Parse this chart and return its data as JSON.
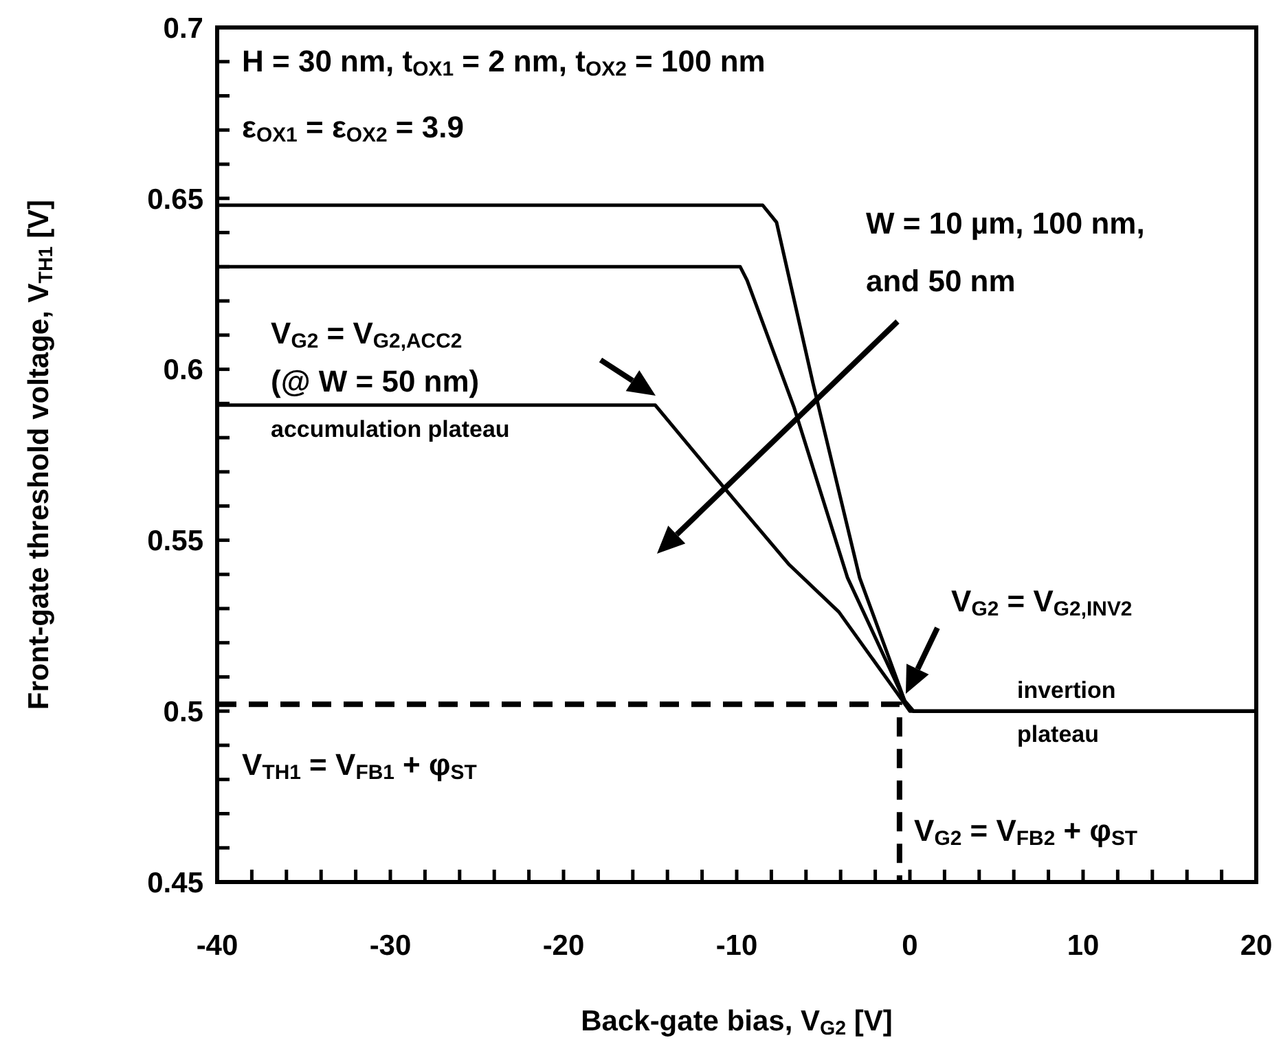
{
  "chart_data": {
    "type": "line",
    "xlabel": "Back-gate bias, V$_{G2}$ [V]",
    "ylabel": "Front-gate threshold voltage, V$_{TH1}$ [V]",
    "xlim": [
      -40,
      20
    ],
    "ylim": [
      0.45,
      0.7
    ],
    "xticks": [
      -40,
      {
        "value": -38,
        "label": null
      },
      {
        "value": -36,
        "label": null
      },
      {
        "value": -34,
        "label": null
      },
      {
        "value": -32,
        "label": null
      },
      -30,
      {
        "value": -28,
        "label": null
      },
      {
        "value": -26,
        "label": null
      },
      {
        "value": -24,
        "label": null
      },
      {
        "value": -22,
        "label": null
      },
      -20,
      {
        "value": -18,
        "label": null
      },
      {
        "value": -16,
        "label": null
      },
      {
        "value": -14,
        "label": null
      },
      {
        "value": -12,
        "label": null
      },
      -10,
      {
        "value": -8,
        "label": null
      },
      {
        "value": -6,
        "label": null
      },
      {
        "value": -4,
        "label": null
      },
      {
        "value": -2,
        "label": null
      },
      0,
      {
        "value": 2,
        "label": null
      },
      {
        "value": 4,
        "label": null
      },
      {
        "value": 6,
        "label": null
      },
      {
        "value": 8,
        "label": null
      },
      10,
      {
        "value": 12,
        "label": null
      },
      {
        "value": 14,
        "label": null
      },
      {
        "value": 16,
        "label": null
      },
      {
        "value": 18,
        "label": null
      },
      20
    ],
    "yticks": [
      0.45,
      {
        "value": 0.46,
        "label": null
      },
      {
        "value": 0.47,
        "label": null
      },
      {
        "value": 0.48,
        "label": null
      },
      {
        "value": 0.49,
        "label": null
      },
      0.5,
      {
        "value": 0.51,
        "label": null
      },
      {
        "value": 0.52,
        "label": null
      },
      {
        "value": 0.53,
        "label": null
      },
      {
        "value": 0.54,
        "label": null
      },
      0.55,
      {
        "value": 0.56,
        "label": null
      },
      {
        "value": 0.57,
        "label": null
      },
      {
        "value": 0.58,
        "label": null
      },
      {
        "value": 0.59,
        "label": null
      },
      0.6,
      {
        "value": 0.61,
        "label": null
      },
      {
        "value": 0.62,
        "label": null
      },
      {
        "value": 0.63,
        "label": null
      },
      {
        "value": 0.64,
        "label": null
      },
      0.65,
      {
        "value": 0.66,
        "label": null
      },
      {
        "value": 0.67,
        "label": null
      },
      {
        "value": 0.68,
        "label": null
      },
      {
        "value": 0.69,
        "label": null
      },
      0.7
    ],
    "grid": false,
    "series": [
      {
        "color": "#000000",
        "line_style": "solid",
        "x": [
          -40,
          -8.5,
          -7.7,
          -5.6,
          -2.9,
          -0.3,
          0.2,
          20
        ],
        "values": [
          0.648,
          0.648,
          0.643,
          0.596,
          0.539,
          0.503,
          0.5,
          0.5
        ]
      },
      {
        "color": "#000000",
        "line_style": "solid",
        "x": [
          -40,
          -9.8,
          -9.4,
          -6.7,
          -3.6,
          -0.3,
          0.2,
          20
        ],
        "values": [
          0.63,
          0.63,
          0.626,
          0.589,
          0.539,
          0.503,
          0.5,
          0.5
        ]
      },
      {
        "color": "#000000",
        "line_style": "solid",
        "x": [
          -40,
          -14.7,
          -11.5,
          -7.0,
          -4.1,
          -0.7,
          0,
          0.2,
          20
        ],
        "values": [
          0.5895,
          0.5895,
          0.57,
          0.543,
          0.529,
          0.505,
          0.5,
          0.5,
          0.5
        ]
      },
      {
        "color": "#000000",
        "line_style": "dashed",
        "x": [
          -40,
          -0.6,
          -0.6
        ],
        "values": [
          0.502,
          0.502,
          0.45
        ]
      }
    ],
    "annotations": [
      "H = 30 nm, t$_{OX1}$ = 2 nm, t$_{OX2}$ = 100 nm",
      "ε$_{OX1}$ = ε$_{OX2}$ = 3.9",
      "W = 10 µm, 100 nm,",
      "and 50 nm",
      "V$_{G2}$ = V$_{G2,ACC2}$",
      "(@ W = 50 nm)",
      "accumulation plateau",
      "V$_{G2}$ = V$_{G2,INV2}$",
      "invertion",
      "plateau",
      "V$_{TH1}$ = V$_{FB1}$ + φ$_{ST}$",
      "V$_{G2}$ = V$_{FB2}$ + φ$_{ST}$"
    ]
  }
}
